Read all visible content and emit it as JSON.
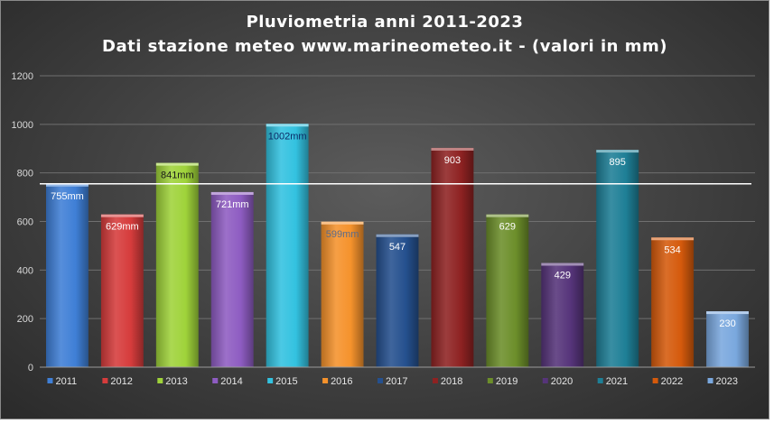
{
  "header": {
    "title_line1": "Pluviometria  anni 2011-2023",
    "title_line2": "Dati stazione meteo www.marineometeo.it - (valori in mm)"
  },
  "chart_data": {
    "type": "bar",
    "title": "Pluviometria  anni 2011-2023 Dati stazione meteo www.marineometeo.it - (valori in mm)",
    "xlabel": "",
    "ylabel": "",
    "ylim": [
      0,
      1200
    ],
    "y_ticks": [
      "0",
      "200",
      "400",
      "600",
      "800",
      "1000",
      "1200"
    ],
    "grid": true,
    "legend": "bottom",
    "reference_line": 755,
    "series": [
      {
        "name": "2011",
        "value": 755,
        "label": "755mm",
        "color": "#3f7fd6",
        "label_color": "#ffffff"
      },
      {
        "name": "2012",
        "value": 629,
        "label": "629mm",
        "color": "#d63c3c",
        "label_color": "#ffffff"
      },
      {
        "name": "2013",
        "value": 841,
        "label": "841mm",
        "color": "#9fd33a",
        "label_color": "#1a1a1a"
      },
      {
        "name": "2014",
        "value": 721,
        "label": "721mm",
        "color": "#8e5cc2",
        "label_color": "#ffffff"
      },
      {
        "name": "2015",
        "value": 1002,
        "label": "1002mm",
        "color": "#33c2e0",
        "label_color": "#0b2a66"
      },
      {
        "name": "2016",
        "value": 599,
        "label": "599mm",
        "color": "#f5922c",
        "label_color": "#5a6b8a"
      },
      {
        "name": "2017",
        "value": 547,
        "label": "547",
        "color": "#25508e",
        "label_color": "#ffffff"
      },
      {
        "name": "2018",
        "value": 903,
        "label": "903",
        "color": "#8e2222",
        "label_color": "#ffffff"
      },
      {
        "name": "2019",
        "value": 629,
        "label": "629",
        "color": "#6c8e2a",
        "label_color": "#ffffff"
      },
      {
        "name": "2020",
        "value": 429,
        "label": "429",
        "color": "#56347a",
        "label_color": "#ffffff"
      },
      {
        "name": "2021",
        "value": 895,
        "label": "895",
        "color": "#1e7f96",
        "label_color": "#ffffff"
      },
      {
        "name": "2022",
        "value": 534,
        "label": "534",
        "color": "#d55a0c",
        "label_color": "#ffffff"
      },
      {
        "name": "2023",
        "value": 230,
        "label": "230",
        "color": "#7aa8de",
        "label_color": "#ffffff"
      }
    ]
  }
}
